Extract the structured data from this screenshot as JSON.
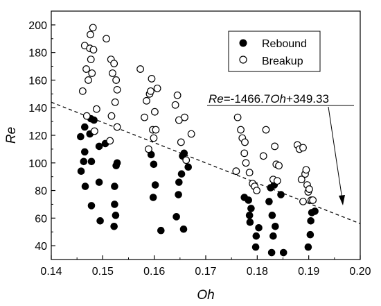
{
  "chart_data": {
    "type": "scatter",
    "xlabel": "Oh",
    "ylabel": "Re",
    "xlim": [
      0.14,
      0.2
    ],
    "ylim": [
      30,
      210
    ],
    "x_ticks": [
      "0.14",
      "0.15",
      "0.16",
      "0.17",
      "0.18",
      "0.19",
      "0.20"
    ],
    "y_ticks": [
      "40",
      "60",
      "80",
      "100",
      "120",
      "140",
      "160",
      "180",
      "200"
    ],
    "x_tick_values": [
      0.14,
      0.15,
      0.16,
      0.17,
      0.18,
      0.19,
      0.2
    ],
    "y_tick_values": [
      40,
      60,
      80,
      100,
      120,
      140,
      160,
      180,
      200
    ],
    "grid": false,
    "legend_position": "top-right",
    "series": [
      {
        "name": "Rebound",
        "marker": "filled-circle",
        "color": "#000000",
        "points": [
          [
            0.1457,
            119
          ],
          [
            0.1458,
            94
          ],
          [
            0.1463,
            101
          ],
          [
            0.1465,
            108
          ],
          [
            0.1465,
            126
          ],
          [
            0.1466,
            83
          ],
          [
            0.1475,
            121
          ],
          [
            0.1477,
            132
          ],
          [
            0.1478,
            69
          ],
          [
            0.1478,
            101
          ],
          [
            0.1483,
            131
          ],
          [
            0.1493,
            86
          ],
          [
            0.1493,
            112
          ],
          [
            0.1495,
            58
          ],
          [
            0.1505,
            114
          ],
          [
            0.1522,
            54
          ],
          [
            0.1523,
            70
          ],
          [
            0.1523,
            83
          ],
          [
            0.1525,
            62
          ],
          [
            0.1526,
            98
          ],
          [
            0.1528,
            100
          ],
          [
            0.1594,
            106
          ],
          [
            0.1598,
            75
          ],
          [
            0.1599,
            99
          ],
          [
            0.1602,
            84
          ],
          [
            0.1613,
            51
          ],
          [
            0.1643,
            61
          ],
          [
            0.1647,
            77
          ],
          [
            0.1648,
            86
          ],
          [
            0.1653,
            92
          ],
          [
            0.1655,
            105
          ],
          [
            0.1657,
            52
          ],
          [
            0.1658,
            107
          ],
          [
            0.1666,
            97
          ],
          [
            0.1775,
            75
          ],
          [
            0.1783,
            73
          ],
          [
            0.1785,
            62
          ],
          [
            0.1786,
            57
          ],
          [
            0.1788,
            67
          ],
          [
            0.1797,
            39
          ],
          [
            0.1798,
            47
          ],
          [
            0.1803,
            53
          ],
          [
            0.1823,
            72
          ],
          [
            0.1826,
            82
          ],
          [
            0.1828,
            35
          ],
          [
            0.1829,
            62
          ],
          [
            0.1831,
            47
          ],
          [
            0.1835,
            54
          ],
          [
            0.1833,
            84
          ],
          [
            0.1846,
            77
          ],
          [
            0.1851,
            35
          ],
          [
            0.1899,
            39
          ],
          [
            0.1903,
            48
          ],
          [
            0.1904,
            58
          ],
          [
            0.1906,
            64
          ],
          [
            0.1912,
            65
          ]
        ]
      },
      {
        "name": "Breakup",
        "marker": "open-circle",
        "color": "#000000",
        "points": [
          [
            0.1461,
            152
          ],
          [
            0.1465,
            185
          ],
          [
            0.1468,
            168
          ],
          [
            0.1469,
            134
          ],
          [
            0.1472,
            160
          ],
          [
            0.1475,
            183
          ],
          [
            0.1476,
            193
          ],
          [
            0.1477,
            175
          ],
          [
            0.1479,
            165
          ],
          [
            0.1481,
            198
          ],
          [
            0.1482,
            182
          ],
          [
            0.1484,
            123
          ],
          [
            0.1488,
            139
          ],
          [
            0.1507,
            190
          ],
          [
            0.1514,
            116
          ],
          [
            0.1516,
            175
          ],
          [
            0.1517,
            134
          ],
          [
            0.1519,
            165
          ],
          [
            0.1522,
            172
          ],
          [
            0.1524,
            144
          ],
          [
            0.1526,
            160
          ],
          [
            0.1528,
            153
          ],
          [
            0.1528,
            126
          ],
          [
            0.1573,
            168
          ],
          [
            0.1581,
            133
          ],
          [
            0.1585,
            145
          ],
          [
            0.1589,
            110
          ],
          [
            0.1591,
            150
          ],
          [
            0.1593,
            152
          ],
          [
            0.1595,
            161
          ],
          [
            0.1597,
            124
          ],
          [
            0.1599,
            118
          ],
          [
            0.1601,
            137
          ],
          [
            0.1603,
            124
          ],
          [
            0.1606,
            154
          ],
          [
            0.1641,
            142
          ],
          [
            0.1645,
            149
          ],
          [
            0.1648,
            131
          ],
          [
            0.1652,
            115
          ],
          [
            0.1659,
            133
          ],
          [
            0.1662,
            102
          ],
          [
            0.1672,
            121
          ],
          [
            0.1759,
            94
          ],
          [
            0.1762,
            133
          ],
          [
            0.1768,
            124
          ],
          [
            0.1771,
            118
          ],
          [
            0.1775,
            107
          ],
          [
            0.1776,
            115
          ],
          [
            0.1778,
            100
          ],
          [
            0.1785,
            93
          ],
          [
            0.1791,
            85
          ],
          [
            0.1795,
            83
          ],
          [
            0.1799,
            80
          ],
          [
            0.1812,
            105
          ],
          [
            0.1817,
            124
          ],
          [
            0.1831,
            88
          ],
          [
            0.1834,
            112
          ],
          [
            0.1837,
            99
          ],
          [
            0.1839,
            87
          ],
          [
            0.1842,
            98
          ],
          [
            0.1878,
            113
          ],
          [
            0.1882,
            110
          ],
          [
            0.1886,
            88
          ],
          [
            0.1889,
            72
          ],
          [
            0.1889,
            111
          ],
          [
            0.1893,
            92
          ],
          [
            0.1895,
            95
          ],
          [
            0.1897,
            84
          ],
          [
            0.1899,
            79
          ],
          [
            0.1901,
            81
          ],
          [
            0.1905,
            73
          ],
          [
            0.1908,
            73
          ]
        ]
      }
    ],
    "fit_line": {
      "label_parts": [
        "Re",
        "=-1466.7",
        "Oh",
        "+349.33"
      ],
      "slope": -1466.7,
      "intercept": 349.33,
      "style": "dashed"
    }
  }
}
